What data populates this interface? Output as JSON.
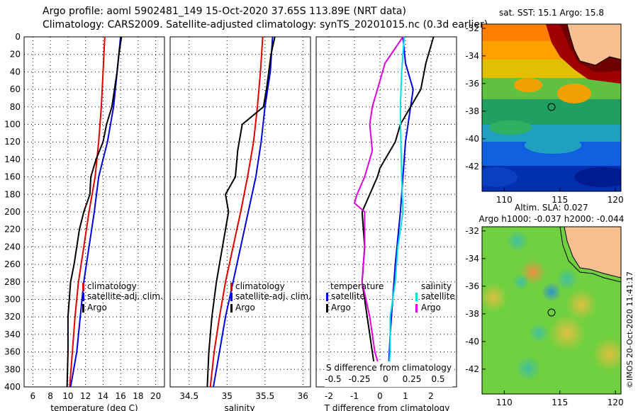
{
  "title": {
    "line1": "Argo profile: aoml 5902481_149 15-Oct-2020 37.65S 113.89E (NRT data)",
    "line2": "Climatology: CARS2009. Satellite-adjusted climatology: synTS_20201015.nc (0.3d earlier)"
  },
  "colors": {
    "climatology": "#e00000",
    "satellite": "#0000e0",
    "argo": "#000000",
    "temp_diff": "#e000e0",
    "sal_diff": "#00e0e0",
    "land": "#f8c090"
  },
  "depth_axis": {
    "ticks": [
      0,
      20,
      40,
      60,
      80,
      100,
      120,
      140,
      160,
      180,
      200,
      220,
      240,
      260,
      280,
      300,
      320,
      340,
      360,
      380,
      400
    ],
    "range": [
      0,
      400
    ]
  },
  "chart_data": [
    {
      "type": "line",
      "id": "temperature",
      "xlabel": "temperature (deg C)",
      "xlim": [
        5,
        21
      ],
      "xticks": [
        6,
        8,
        10,
        12,
        14,
        16,
        18,
        20
      ],
      "ylim": [
        0,
        400
      ],
      "legend": [
        "climatology",
        "satellite-adj. clim.",
        "Argo"
      ],
      "series": [
        {
          "name": "climatology",
          "color": "#e00000",
          "points": [
            [
              14.2,
              0
            ],
            [
              14.0,
              40
            ],
            [
              13.8,
              80
            ],
            [
              13.5,
              120
            ],
            [
              13.1,
              160
            ],
            [
              12.4,
              200
            ],
            [
              11.8,
              240
            ],
            [
              11.2,
              280
            ],
            [
              10.8,
              320
            ],
            [
              10.5,
              360
            ],
            [
              10.2,
              400
            ]
          ]
        },
        {
          "name": "satellite-adj. clim.",
          "color": "#0000e0",
          "points": [
            [
              16.0,
              0
            ],
            [
              15.6,
              40
            ],
            [
              15.2,
              80
            ],
            [
              14.5,
              120
            ],
            [
              13.5,
              160
            ],
            [
              13.0,
              200
            ],
            [
              12.4,
              240
            ],
            [
              11.8,
              280
            ],
            [
              11.4,
              320
            ],
            [
              11.0,
              360
            ],
            [
              10.3,
              400
            ]
          ]
        },
        {
          "name": "Argo",
          "color": "#000000",
          "points": [
            [
              16.1,
              0
            ],
            [
              15.8,
              20
            ],
            [
              15.6,
              40
            ],
            [
              15.3,
              60
            ],
            [
              15.0,
              80
            ],
            [
              14.4,
              100
            ],
            [
              14.0,
              120
            ],
            [
              13.2,
              140
            ],
            [
              12.9,
              150
            ],
            [
              12.6,
              160
            ],
            [
              12.5,
              180
            ],
            [
              11.8,
              200
            ],
            [
              11.3,
              220
            ],
            [
              11.0,
              240
            ],
            [
              10.7,
              260
            ],
            [
              10.3,
              280
            ],
            [
              10.0,
              320
            ],
            [
              10.0,
              360
            ],
            [
              9.9,
              400
            ]
          ]
        }
      ]
    },
    {
      "type": "line",
      "id": "salinity",
      "xlabel": "salinity",
      "xlim": [
        34.25,
        36.1
      ],
      "xticks": [
        34.5,
        35,
        35.5,
        36
      ],
      "xticklabels": [
        "34.5",
        "35",
        "35.5",
        "36"
      ],
      "ylim": [
        0,
        400
      ],
      "legend": [
        "climatology",
        "satellite-adj. clim.",
        "Argo"
      ],
      "series": [
        {
          "name": "climatology",
          "color": "#e00000",
          "points": [
            [
              35.47,
              0
            ],
            [
              35.44,
              40
            ],
            [
              35.4,
              80
            ],
            [
              35.35,
              120
            ],
            [
              35.27,
              160
            ],
            [
              35.18,
              200
            ],
            [
              35.08,
              240
            ],
            [
              34.98,
              280
            ],
            [
              34.9,
              320
            ],
            [
              34.83,
              360
            ],
            [
              34.78,
              400
            ]
          ]
        },
        {
          "name": "satellite-adj. clim.",
          "color": "#0000e0",
          "points": [
            [
              35.6,
              0
            ],
            [
              35.57,
              40
            ],
            [
              35.5,
              80
            ],
            [
              35.45,
              120
            ],
            [
              35.38,
              160
            ],
            [
              35.28,
              200
            ],
            [
              35.18,
              240
            ],
            [
              35.08,
              280
            ],
            [
              34.98,
              320
            ],
            [
              34.9,
              360
            ],
            [
              34.82,
              400
            ]
          ]
        },
        {
          "name": "Argo",
          "color": "#000000",
          "points": [
            [
              35.63,
              0
            ],
            [
              35.58,
              20
            ],
            [
              35.55,
              40
            ],
            [
              35.52,
              60
            ],
            [
              35.48,
              80
            ],
            [
              35.2,
              100
            ],
            [
              35.14,
              130
            ],
            [
              35.11,
              160
            ],
            [
              34.98,
              180
            ],
            [
              35.02,
              200
            ],
            [
              34.94,
              240
            ],
            [
              34.86,
              280
            ],
            [
              34.8,
              320
            ],
            [
              34.76,
              360
            ],
            [
              34.74,
              400
            ]
          ]
        }
      ]
    },
    {
      "type": "line",
      "id": "difference",
      "xlabel": "T difference from climatology",
      "xlabel_top": "S difference from climatology",
      "xlim": [
        -2.5,
        3.0
      ],
      "xticks": [
        -2,
        -1,
        0,
        1,
        2
      ],
      "xticks_top": [
        -0.5,
        -0.25,
        0,
        0.25,
        0.5
      ],
      "xticklabels_top": [
        "-0.5",
        "-0.25",
        "0",
        "0.25",
        "0.5"
      ],
      "ylim": [
        0,
        400
      ],
      "legend_temperature_title": "temperature",
      "legend_salinity_title": "salinity",
      "legend_temperature": [
        "satellite",
        "Argo"
      ],
      "legend_salinity": [
        "satellite",
        "Argo"
      ],
      "series": [
        {
          "name": "T satellite",
          "color": "#0000e0",
          "points": [
            [
              0.9,
              0
            ],
            [
              1.0,
              30
            ],
            [
              1.3,
              60
            ],
            [
              1.0,
              120
            ],
            [
              0.8,
              200
            ],
            [
              0.6,
              260
            ],
            [
              0.5,
              300
            ],
            [
              0.4,
              340
            ],
            [
              0.3,
              400
            ]
          ]
        },
        {
          "name": "T Argo",
          "color": "#000000",
          "points": [
            [
              2.1,
              0
            ],
            [
              1.8,
              30
            ],
            [
              1.6,
              60
            ],
            [
              0.8,
              100
            ],
            [
              0.6,
              120
            ],
            [
              0.2,
              140
            ],
            [
              0.0,
              150
            ],
            [
              -0.1,
              160
            ],
            [
              -0.4,
              180
            ],
            [
              -0.7,
              200
            ],
            [
              -0.6,
              240
            ],
            [
              -0.7,
              280
            ],
            [
              -0.5,
              320
            ],
            [
              -0.3,
              360
            ],
            [
              -0.1,
              400
            ]
          ]
        },
        {
          "name": "S satellite",
          "color": "#00e0e0",
          "points": [
            [
              0.95,
              0
            ],
            [
              0.85,
              40
            ],
            [
              0.8,
              80
            ],
            [
              0.82,
              120
            ],
            [
              0.85,
              160
            ],
            [
              0.9,
              200
            ],
            [
              0.7,
              240
            ],
            [
              0.6,
              280
            ],
            [
              0.4,
              320
            ],
            [
              0.4,
              360
            ],
            [
              0.3,
              400
            ]
          ]
        },
        {
          "name": "S Argo",
          "color": "#e000e0",
          "points": [
            [
              0.9,
              0
            ],
            [
              0.2,
              30
            ],
            [
              -0.1,
              60
            ],
            [
              -0.3,
              80
            ],
            [
              -0.4,
              100
            ],
            [
              -0.3,
              130
            ],
            [
              -0.6,
              160
            ],
            [
              -0.9,
              180
            ],
            [
              -1.0,
              190
            ],
            [
              -0.6,
              200
            ],
            [
              -0.6,
              240
            ],
            [
              -0.7,
              280
            ],
            [
              -0.4,
              320
            ],
            [
              -0.2,
              360
            ],
            [
              0.0,
              380
            ],
            [
              0.1,
              400
            ]
          ]
        }
      ]
    }
  ],
  "maps": [
    {
      "id": "sst-map",
      "title": "sat. SST: 15.1 Argo: 15.8",
      "lon_ticks": [
        110,
        115,
        120
      ],
      "lat_ticks": [
        -32,
        -34,
        -36,
        -38,
        -40,
        -42
      ],
      "lon_range": [
        108,
        120.5
      ],
      "lat_range": [
        -43.8,
        -31.7
      ],
      "argo_position": {
        "lon": 113.89,
        "lat": -37.65
      },
      "color_bands": [
        "#7a0000",
        "#b00000",
        "#e03000",
        "#ff8000",
        "#ffb000",
        "#d0d000",
        "#80c040",
        "#20a060",
        "#20a0c0",
        "#1060e0",
        "#0030b0",
        "#001080"
      ]
    },
    {
      "id": "sla-map",
      "title1": "Altim. SLA: 0.027",
      "title2": "Argo h1000: -0.037 h2000: -0.044",
      "lon_ticks": [
        110,
        115,
        120
      ],
      "lat_ticks": [
        -32,
        -34,
        -36,
        -38,
        -40,
        -42
      ],
      "lon_range": [
        108,
        120.5
      ],
      "lat_range": [
        -43.8,
        -31.7
      ],
      "argo_position": {
        "lon": 113.89,
        "lat": -37.65
      }
    }
  ],
  "credit": "©IMOS 20-Oct-2020 11:41:17"
}
